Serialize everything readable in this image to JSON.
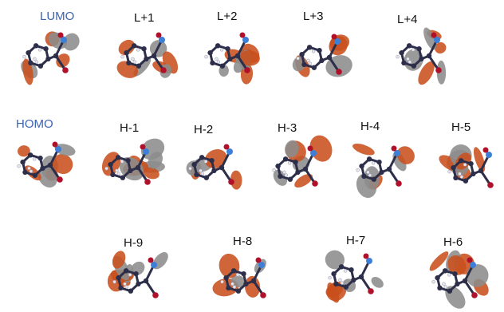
{
  "colors": {
    "label_accent": "#3b63b0",
    "label_default": "#111111",
    "lobe_positive": "#c8501c",
    "lobe_negative": "#8c8c8c",
    "carbon": "#2d2f4a",
    "nitrogen": "#3d7fd6",
    "oxygen": "#b0102a",
    "hydrogen": "#e6e6ee"
  },
  "orbitals": [
    {
      "id": "lumo",
      "label": "LUMO",
      "accent": true
    },
    {
      "id": "l1",
      "label": "L+1",
      "accent": false
    },
    {
      "id": "l2",
      "label": "L+2",
      "accent": false
    },
    {
      "id": "l3",
      "label": "L+3",
      "accent": false
    },
    {
      "id": "l4",
      "label": "L+4",
      "accent": false
    },
    {
      "id": "homo",
      "label": "HOMO",
      "accent": true
    },
    {
      "id": "h1",
      "label": "H-1",
      "accent": false
    },
    {
      "id": "h2",
      "label": "H-2",
      "accent": false
    },
    {
      "id": "h3",
      "label": "H-3",
      "accent": false
    },
    {
      "id": "h4",
      "label": "H-4",
      "accent": false
    },
    {
      "id": "h5",
      "label": "H-5",
      "accent": false
    },
    {
      "id": "h9",
      "label": "H-9",
      "accent": false
    },
    {
      "id": "h8",
      "label": "H-8",
      "accent": false
    },
    {
      "id": "h7",
      "label": "H-7",
      "accent": false
    },
    {
      "id": "h6",
      "label": "H-6",
      "accent": false
    }
  ]
}
